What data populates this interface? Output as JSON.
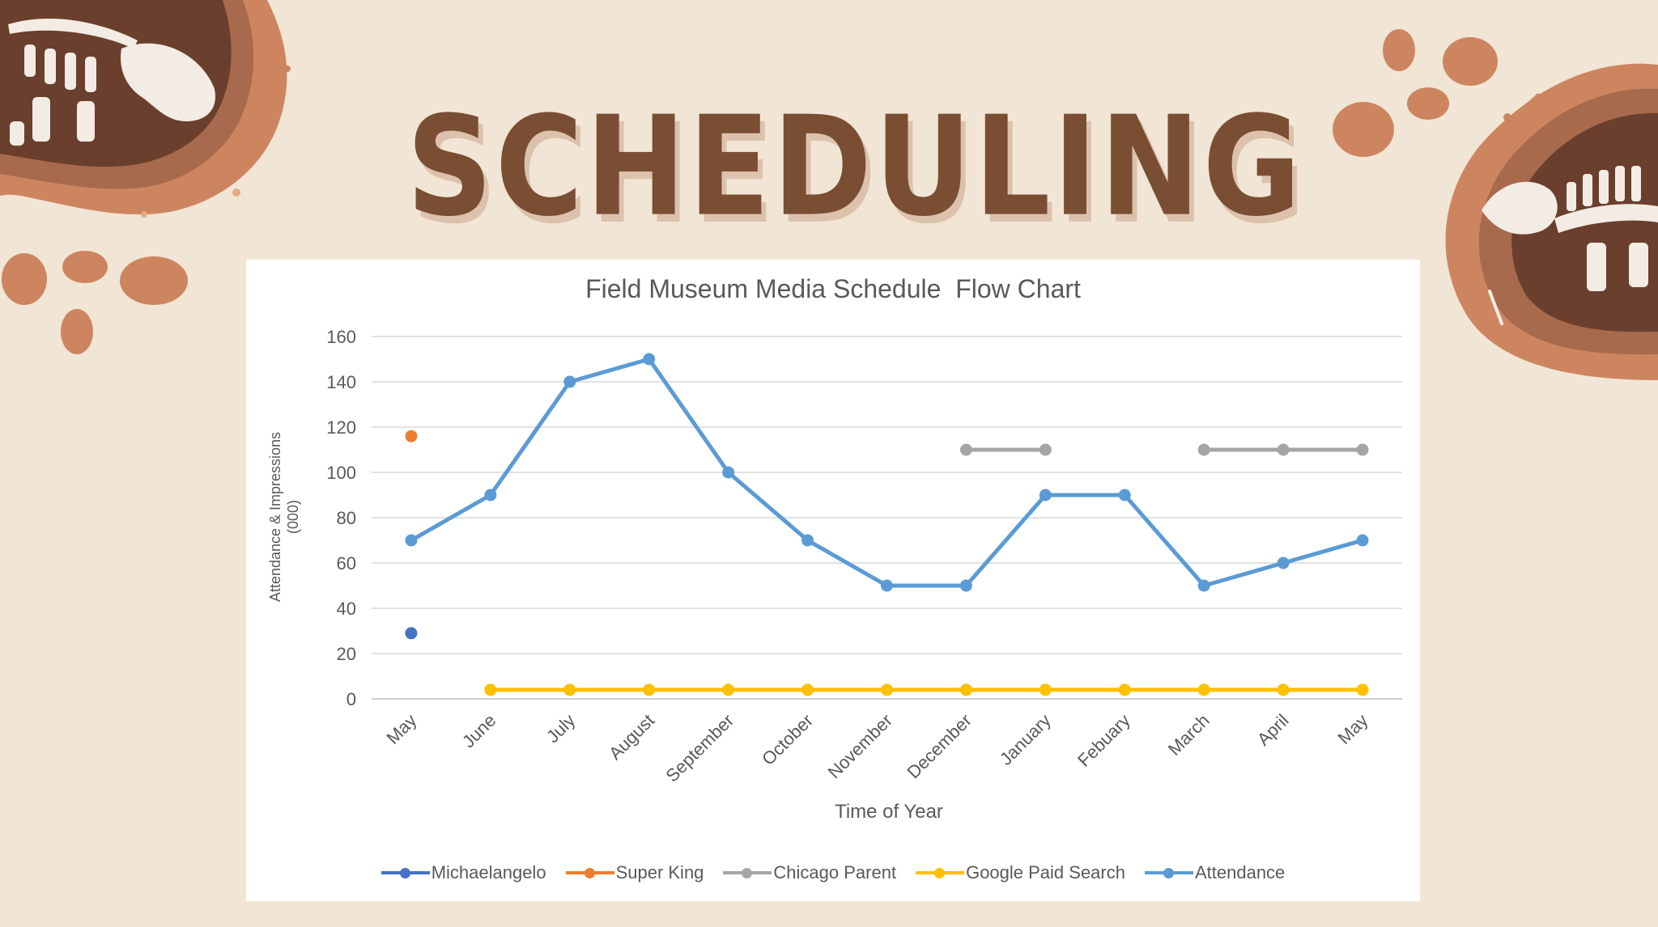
{
  "slide": {
    "title": "SCHEDULING"
  },
  "chart_data": {
    "type": "line",
    "title": "Field Museum Media Schedule  Flow Chart",
    "xlabel": "Time of Year",
    "ylabel": "Attendance & Impressions\n(000)",
    "categories": [
      "May",
      "June",
      "July",
      "August",
      "September",
      "October",
      "November",
      "December",
      "January",
      "Febuary",
      "March",
      "April",
      "May"
    ],
    "ylim": [
      0,
      160
    ],
    "yticks": [
      0,
      20,
      40,
      60,
      80,
      100,
      120,
      140,
      160
    ],
    "grid": true,
    "legend_position": "bottom",
    "series": [
      {
        "name": "Michaelangelo",
        "color": "#4472c4",
        "values": [
          29,
          null,
          null,
          null,
          null,
          null,
          null,
          null,
          null,
          null,
          null,
          null,
          null
        ]
      },
      {
        "name": "Super King",
        "color": "#ed7d31",
        "values": [
          116,
          null,
          null,
          null,
          null,
          null,
          null,
          null,
          null,
          null,
          null,
          null,
          null
        ]
      },
      {
        "name": "Chicago Parent",
        "color": "#a5a5a5",
        "values": [
          null,
          null,
          null,
          null,
          null,
          null,
          null,
          110,
          110,
          null,
          110,
          110,
          110
        ]
      },
      {
        "name": "Google Paid Search",
        "color": "#ffc000",
        "values": [
          null,
          4,
          4,
          4,
          4,
          4,
          4,
          4,
          4,
          4,
          4,
          4,
          4
        ]
      },
      {
        "name": "Attendance",
        "color": "#5b9bd5",
        "values": [
          70,
          90,
          140,
          150,
          100,
          70,
          50,
          50,
          90,
          90,
          50,
          60,
          70
        ]
      }
    ]
  }
}
